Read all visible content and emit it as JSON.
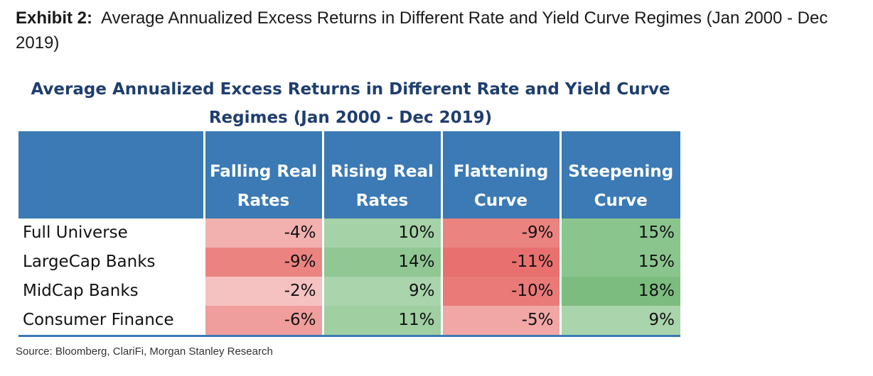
{
  "exhibit": {
    "label": "Exhibit 2:",
    "title": "Average Annualized Excess Returns in Different Rate and Yield Curve Regimes (Jan 2000 - Dec 2019)"
  },
  "table": {
    "title": "Average Annualized Excess Returns in Different Rate and Yield Curve Regimes (Jan 2000 - Dec 2019)",
    "columns": [
      {
        "line1": "Falling Real",
        "line2": "Rates"
      },
      {
        "line1": "Rising Real",
        "line2": "Rates"
      },
      {
        "line1": "Flattening",
        "line2": "Curve"
      },
      {
        "line1": "Steepening",
        "line2": "Curve"
      }
    ],
    "rows": [
      {
        "label": "Full Universe",
        "cells": [
          "-4%",
          "10%",
          "-9%",
          "15%"
        ]
      },
      {
        "label": "LargeCap Banks",
        "cells": [
          "-9%",
          "14%",
          "-11%",
          "15%"
        ]
      },
      {
        "label": "MidCap Banks",
        "cells": [
          "-2%",
          "9%",
          "-10%",
          "18%"
        ]
      },
      {
        "label": "Consumer Finance",
        "cells": [
          "-6%",
          "11%",
          "-5%",
          "9%"
        ]
      }
    ],
    "values": [
      [
        -4,
        10,
        -9,
        15
      ],
      [
        -9,
        14,
        -11,
        15
      ],
      [
        -2,
        9,
        -10,
        18
      ],
      [
        -6,
        11,
        -5,
        9
      ]
    ],
    "colors": {
      "header_bg": "#3b7ab4",
      "title_text": "#1f3e6e",
      "negative_max": "#e8716f",
      "positive_max": "#7cbd7f",
      "neutral": "#ffffff"
    }
  },
  "source": "Source: Bloomberg, ClariFi, Morgan Stanley Research"
}
